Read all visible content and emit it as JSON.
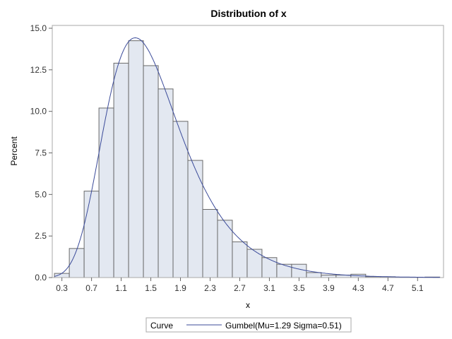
{
  "chart_data": {
    "type": "bar",
    "title": "Distribution of x",
    "xlabel": "x",
    "ylabel": "Percent",
    "xlim": [
      0.17,
      5.45
    ],
    "ylim": [
      0,
      15
    ],
    "bin_width": 0.2,
    "bin_midpoints": [
      0.3,
      0.5,
      0.7,
      0.9,
      1.1,
      1.3,
      1.5,
      1.7,
      1.9,
      2.1,
      2.3,
      2.5,
      2.7,
      2.9,
      3.1,
      3.3,
      3.5,
      3.7,
      3.9,
      4.1,
      4.3,
      4.5,
      4.7,
      4.9,
      5.1,
      5.3
    ],
    "values": [
      0.25,
      1.75,
      5.2,
      10.2,
      12.9,
      14.25,
      12.75,
      11.35,
      9.4,
      7.05,
      4.1,
      3.45,
      2.15,
      1.7,
      1.2,
      0.8,
      0.8,
      0.3,
      0.15,
      0.15,
      0.2,
      0.05,
      0.05,
      0.02,
      0.0,
      0.03
    ],
    "xticks": [
      "0.3",
      "0.7",
      "1.1",
      "1.5",
      "1.9",
      "2.3",
      "2.7",
      "3.1",
      "3.5",
      "3.9",
      "4.3",
      "4.7",
      "5.1"
    ],
    "yticks": [
      "0.0",
      "2.5",
      "5.0",
      "7.5",
      "10.0",
      "12.5",
      "15.0"
    ],
    "curve": {
      "distribution": "Gumbel",
      "mu": 1.29,
      "sigma": 0.51
    },
    "legend": {
      "title": "Curve",
      "entry": "Gumbel(Mu=1.29 Sigma=0.51)",
      "placement": "bottom"
    },
    "grid": false,
    "colors": {
      "bar_fill": "#e3e8f1",
      "bar_stroke": "#6a6a6a",
      "curve": "#3b4b9a",
      "frame": "#a8a8a8"
    }
  }
}
